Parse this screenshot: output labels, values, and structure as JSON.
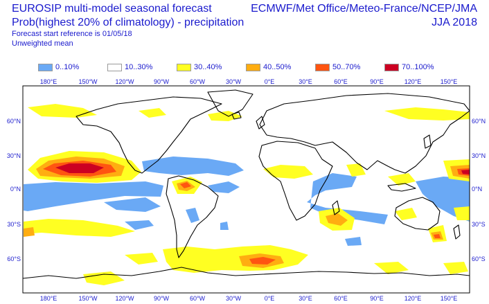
{
  "header": {
    "title": "EUROSIP multi-model seasonal forecast",
    "subtitle": "Prob(highest 20% of climatology) - precipitation",
    "forecast_reference": "Forecast start reference is 01/05/18",
    "mean_type": "Unweighted mean",
    "source": "ECMWF/Met Office/Meteo-France/NCEP/JMA",
    "season": "JJA 2018"
  },
  "legend": [
    {
      "label": "0..10%",
      "color": "#6aa9f5"
    },
    {
      "label": "10..30%",
      "color": "#ffffff"
    },
    {
      "label": "30..40%",
      "color": "#ffff22"
    },
    {
      "label": "40..50%",
      "color": "#ffad11"
    },
    {
      "label": "50..70%",
      "color": "#ff5511"
    },
    {
      "label": "70..100%",
      "color": "#cc0022"
    }
  ],
  "map": {
    "lon_labels": [
      "180°E",
      "150°W",
      "120°W",
      "90°W",
      "60°W",
      "30°W",
      "0°E",
      "30°E",
      "60°E",
      "90°E",
      "120°E",
      "150°E"
    ],
    "lat_labels": [
      "60°N",
      "30°N",
      "0°N",
      "30°S",
      "60°S"
    ]
  }
}
